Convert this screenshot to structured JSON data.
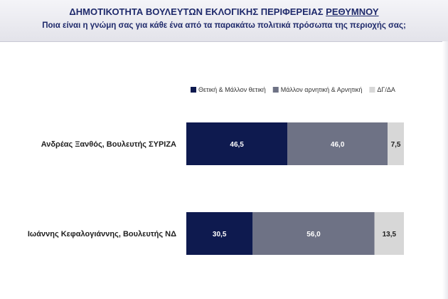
{
  "header": {
    "title_main": "ΔΗΜΟΤΙΚΟΤΗΤΑ ΒΟΥΛΕΥΤΩΝ ΕΚΛΟΓΙΚΗΣ ΠΕΡΙΦΕΡΕΙΑΣ ",
    "title_highlight": "ΡΕΘΥΜΝΟΥ",
    "subtitle": "Ποια είναι η γνώμη σας για κάθε ένα από τα παρακάτω πολιτικά πρόσωπα της περιοχής σας;"
  },
  "chart_data": {
    "type": "bar",
    "orientation": "horizontal",
    "stacked": true,
    "title": "ΔΗΜΟΤΙΚΟΤΗΤΑ ΒΟΥΛΕΥΤΩΝ ΕΚΛΟΓΙΚΗΣ ΠΕΡΙΦΕΡΕΙΑΣ ΡΕΘΥΜΝΟΥ",
    "subtitle": "Ποια είναι η γνώμη σας για κάθε ένα από τα παρακάτω πολιτικά πρόσωπα της περιοχής σας;",
    "categories": [
      "Ανδρέας Ξανθός, Βουλευτής ΣΥΡΙΖΑ",
      "Ιωάννης Κεφαλογιάννης, Βουλευτής ΝΔ"
    ],
    "series": [
      {
        "name": "Θετική & Μάλλον θετική",
        "values": [
          46.5,
          30.5
        ],
        "labels": [
          "46,5",
          "30,5"
        ],
        "color": "#0e1a4f",
        "label_color": "#ffffff"
      },
      {
        "name": "Μάλλον αρνητική & Αρνητική",
        "values": [
          46.0,
          56.0
        ],
        "labels": [
          "46,0",
          "56,0"
        ],
        "color": "#6e7285",
        "label_color": "#ffffff"
      },
      {
        "name": "ΔΓ/ΔΑ",
        "values": [
          7.5,
          13.5
        ],
        "labels": [
          "7,5",
          "13,5"
        ],
        "color": "#d7d7d7",
        "label_color": "#222222"
      }
    ],
    "xlim": [
      0,
      100
    ],
    "grid": false,
    "legend_position": "top-right"
  }
}
